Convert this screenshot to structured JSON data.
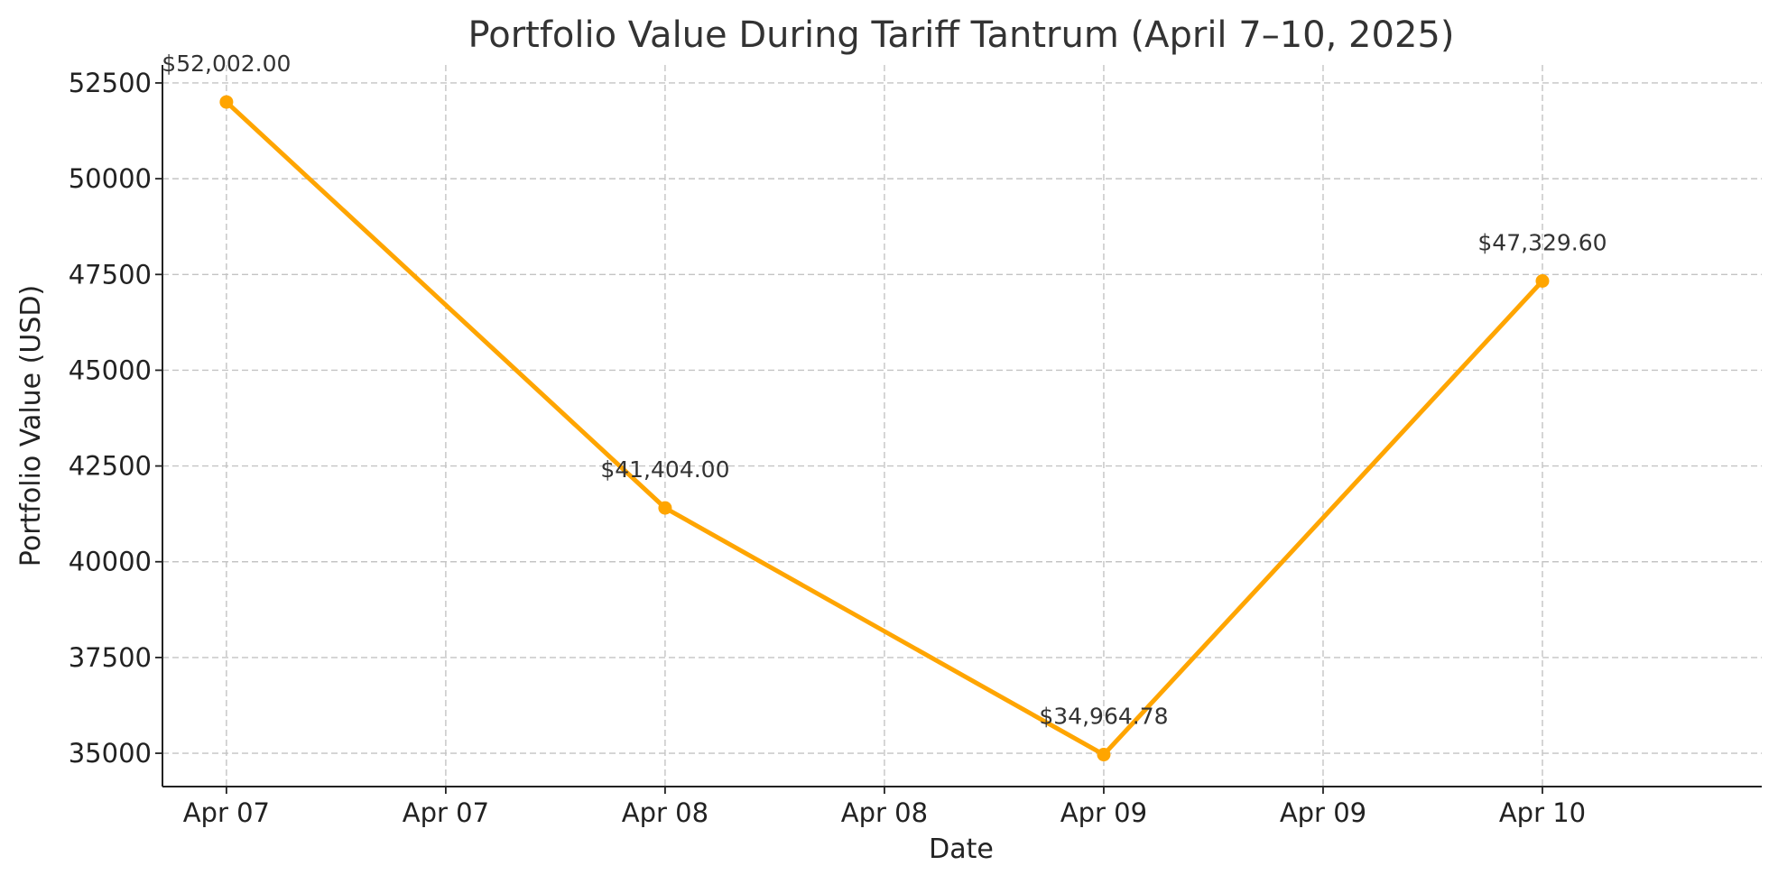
{
  "chart_data": {
    "type": "line",
    "title": "Portfolio Value During Tariff Tantrum (April 7–10, 2025)",
    "xlabel": "Date",
    "ylabel": "Portfolio Value (USD)",
    "x": [
      "2025-04-07",
      "2025-04-08",
      "2025-04-09",
      "2025-04-10"
    ],
    "values": [
      52002.0,
      41404.0,
      34964.78,
      47329.6
    ],
    "data_labels": [
      "$52,002.00",
      "$41,404.00",
      "$34,964.78",
      "$47,329.60"
    ],
    "x_ticks": [
      "Apr 07",
      "Apr 07",
      "Apr 08",
      "Apr 08",
      "Apr 09",
      "Apr 09",
      "Apr 10"
    ],
    "x_tick_values": [
      "2025-04-07 00:00",
      "2025-04-07 12:00",
      "2025-04-08 00:00",
      "2025-04-08 12:00",
      "2025-04-09 00:00",
      "2025-04-09 12:00",
      "2025-04-10 00:00"
    ],
    "y_ticks": [
      "35000",
      "37500",
      "40000",
      "42500",
      "45000",
      "47500",
      "50000",
      "52500"
    ],
    "y_tick_values": [
      35000,
      37500,
      40000,
      42500,
      45000,
      47500,
      50000,
      52500
    ],
    "xlim": [
      "2025-04-06 20:30",
      "2025-04-10 12:00"
    ],
    "ylim": [
      34130,
      52970
    ],
    "grid": true,
    "line_color": "#FFA500",
    "marker": "circle"
  }
}
